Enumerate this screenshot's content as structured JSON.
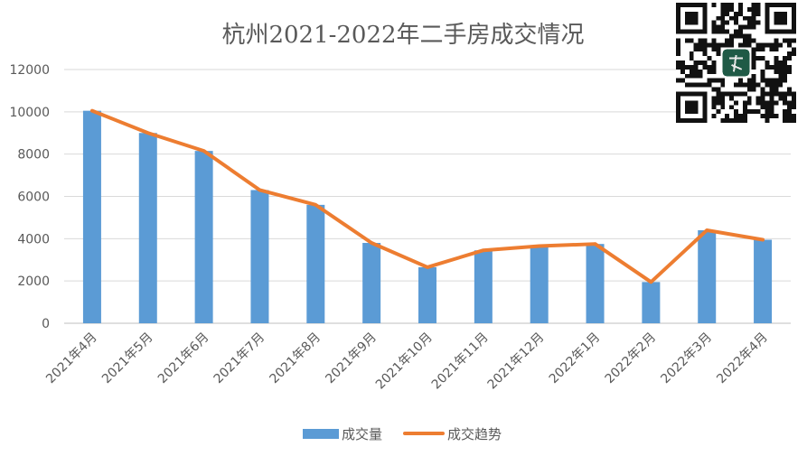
{
  "chart_data": {
    "type": "bar",
    "title": "杭州2021-2022年二手房成交情况",
    "categories": [
      "2021年4月",
      "2021年5月",
      "2021年6月",
      "2021年7月",
      "2021年8月",
      "2021年9月",
      "2021年10月",
      "2021年11月",
      "2021年12月",
      "2022年1月",
      "2022年2月",
      "2022年3月",
      "2022年4月"
    ],
    "series": [
      {
        "name": "成交量",
        "type": "bar",
        "color": "#5B9BD5",
        "values": [
          10050,
          9000,
          8150,
          6300,
          5600,
          3800,
          2650,
          3450,
          3650,
          3750,
          1950,
          4400,
          3950
        ]
      },
      {
        "name": "成交趋势",
        "type": "line",
        "color": "#ED7D31",
        "values": [
          10050,
          9000,
          8150,
          6300,
          5600,
          3800,
          2650,
          3450,
          3650,
          3750,
          1950,
          4400,
          3950
        ]
      }
    ],
    "ylim": [
      0,
      12000
    ],
    "yticks": [
      0,
      2000,
      4000,
      6000,
      8000,
      10000,
      12000
    ],
    "grid": true,
    "legend": "bottom"
  },
  "qr_icon": "qr-code-icon"
}
